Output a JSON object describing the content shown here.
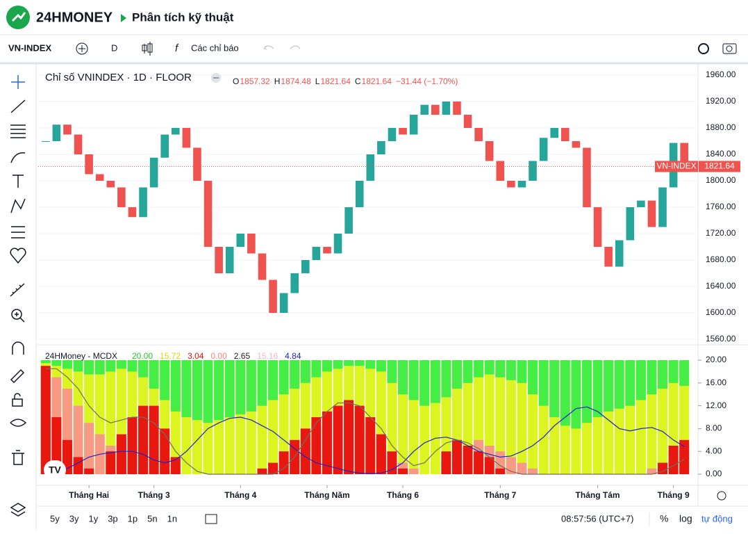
{
  "header": {
    "brand": "24HMONEY",
    "title": "Phân tích kỹ thuật"
  },
  "toolbar": {
    "symbol": "VN-INDEX",
    "interval": "D",
    "indicators": "Các chỉ báo"
  },
  "chart_data": [
    {
      "type": "candlestick",
      "title": "Chỉ số VNINDEX · 1D · FLOOR",
      "ohlc": [
        {
          "label": "O",
          "value": 1857.32
        },
        {
          "label": "H",
          "value": 1874.48
        },
        {
          "label": "L",
          "value": 1821.64
        },
        {
          "label": "C",
          "value": 1821.64
        }
      ],
      "change": "−31.44 (−1.70%)",
      "up_color": "#26a69a",
      "down_color": "#ef5350",
      "series": [
        {
          "name": "VN-INDEX",
          "values": [
            1860,
            1885,
            1870,
            1840,
            1810,
            1800,
            1790,
            1760,
            1745,
            1790,
            1835,
            1870,
            1880,
            1850,
            1800,
            1700,
            1660,
            1700,
            1720,
            1690,
            1650,
            1600,
            1630,
            1660,
            1680,
            1700,
            1690,
            1720,
            1760,
            1800,
            1840,
            1860,
            1880,
            1870,
            1900,
            1915,
            1900,
            1920,
            1900,
            1880,
            1860,
            1830,
            1800,
            1790,
            1800,
            1830,
            1865,
            1880,
            1860,
            1850,
            1760,
            1700,
            1670,
            1710,
            1760,
            1770,
            1730,
            1790,
            1857.32,
            1821.64
          ]
        }
      ],
      "ylim": [
        1560,
        1960
      ],
      "yticks": [
        {
          "value": 1560,
          "label": "1560.00"
        },
        {
          "value": 1600,
          "label": "1600.00"
        },
        {
          "value": 1640,
          "label": "1640.00"
        },
        {
          "value": 1680,
          "label": "1680.00"
        },
        {
          "value": 1720,
          "label": "1720.00"
        },
        {
          "value": 1760,
          "label": "1760.00"
        },
        {
          "value": 1800,
          "label": "1800.00"
        },
        {
          "value": 1840,
          "label": "1840.00"
        },
        {
          "value": 1880,
          "label": "1880.00"
        },
        {
          "value": 1920,
          "label": "1920.00"
        },
        {
          "value": 1960,
          "label": "1960.00"
        }
      ]
    },
    {
      "type": "mcdx",
      "title": "24HMoney - MCDX",
      "legend_values": [
        {
          "label": "20.00",
          "color": "#22cc22"
        },
        {
          "label": "15.72",
          "color": "#d8d800"
        },
        {
          "label": "3.04",
          "color": "#e01010"
        },
        {
          "label": "0.00",
          "color": "#f08878"
        },
        {
          "label": "2.65",
          "color": "#222222"
        },
        {
          "label": "15.16",
          "color": "#f4b8c0"
        },
        {
          "label": "4.84",
          "color": "#2020c0"
        }
      ],
      "fill_color": "#dcf520",
      "series": [
        {
          "style": "top-bar",
          "color": "#44ee44",
          "values": [
            19.5,
            19,
            18.5,
            18,
            17.5,
            17.5,
            18,
            18.5,
            18,
            17,
            15,
            13,
            11,
            10,
            9.5,
            9,
            9.5,
            10,
            10.5,
            11,
            12,
            13,
            14,
            15,
            16,
            17,
            18,
            18.5,
            19,
            19,
            18.5,
            18,
            16,
            14,
            13,
            12,
            12.5,
            13.5,
            15,
            16,
            17,
            17.5,
            17,
            16.5,
            16,
            14,
            12,
            10,
            8.5,
            8,
            9,
            10,
            11,
            11.5,
            12,
            13,
            14,
            15,
            16,
            15.5
          ]
        },
        {
          "style": "bar",
          "color": "#f79a84",
          "values": [
            18,
            17,
            15,
            12,
            9,
            7,
            5,
            6,
            8,
            7,
            5,
            3,
            1,
            0,
            0,
            0,
            0,
            0,
            0,
            0,
            0,
            1,
            3,
            5,
            7,
            9,
            11,
            12,
            11,
            9,
            7,
            5,
            3,
            2,
            1,
            0,
            0,
            2,
            4,
            5,
            6,
            5,
            4,
            3,
            2,
            1,
            0,
            0,
            0,
            0,
            0,
            0,
            0,
            0,
            0,
            0,
            1,
            2,
            3,
            4
          ]
        },
        {
          "style": "bar",
          "color": "#e8170f",
          "values": [
            19,
            10,
            6,
            3,
            1,
            0,
            4,
            7,
            10,
            12,
            12,
            8,
            3,
            0,
            0,
            0,
            0,
            0,
            0,
            0,
            1,
            2,
            4,
            6,
            8,
            10,
            11,
            12,
            13,
            12,
            10,
            7,
            4,
            1,
            0,
            0,
            0,
            4,
            6,
            5,
            4,
            3,
            1,
            0,
            0,
            0,
            0,
            0,
            0,
            0,
            0,
            0,
            0,
            0,
            0,
            0,
            0,
            2,
            5,
            6
          ]
        },
        {
          "style": "line",
          "color": "#1f22c8",
          "values": [
            0.2,
            0.5,
            1,
            2,
            3,
            3.5,
            3.8,
            4,
            4,
            3.5,
            2.5,
            2,
            2.5,
            4,
            6,
            8,
            9,
            9.8,
            10,
            9.5,
            8.5,
            7.5,
            6,
            4.5,
            3,
            2,
            1.5,
            1,
            0.5,
            0.2,
            0.1,
            0.2,
            0.8,
            2,
            4,
            5.5,
            6.3,
            6.5,
            6,
            5,
            4,
            3.5,
            3,
            3.2,
            4,
            5,
            6.5,
            8.5,
            10,
            11.5,
            11.8,
            11,
            9.5,
            8,
            7.6,
            8,
            8.2,
            7.5,
            6,
            4.84
          ]
        },
        {
          "style": "line",
          "color": "#707060",
          "values": [
            18.5,
            18.5,
            17,
            15,
            12,
            10,
            9,
            9.5,
            10,
            10,
            9,
            7,
            4,
            2,
            0.5,
            0,
            0,
            0,
            0,
            0,
            0,
            0,
            1,
            3,
            6,
            9,
            11,
            12.5,
            12.5,
            12,
            10,
            8,
            5,
            3,
            1.5,
            2,
            4,
            5.5,
            6,
            5.5,
            4.5,
            3,
            1.5,
            0.5,
            0,
            0,
            0,
            0,
            0,
            0,
            0,
            0,
            0,
            0,
            0,
            0,
            0,
            0.5,
            1.5,
            2.65
          ]
        }
      ],
      "ylim": [
        0,
        20
      ],
      "yticks": [
        {
          "value": 0,
          "label": "0.00"
        },
        {
          "value": 4,
          "label": "4.00"
        },
        {
          "value": 8,
          "label": "8.00"
        },
        {
          "value": 12,
          "label": "12.00"
        },
        {
          "value": 16,
          "label": "16.00"
        },
        {
          "value": 20,
          "label": "20.00"
        }
      ],
      "xticks": [
        {
          "value": 4,
          "label": "Tháng Hai"
        },
        {
          "value": 10,
          "label": "Tháng 3"
        },
        {
          "value": 18,
          "label": "Tháng 4"
        },
        {
          "value": 26,
          "label": "Tháng Năm"
        },
        {
          "value": 33,
          "label": "Tháng 6"
        },
        {
          "value": 42,
          "label": "Tháng 7"
        },
        {
          "value": 51,
          "label": "Tháng Tám"
        },
        {
          "value": 58,
          "label": "Tháng 9"
        }
      ]
    }
  ],
  "footer": {
    "ranges": [
      "5y",
      "3y",
      "1y",
      "3p",
      "1p",
      "5n",
      "1n"
    ],
    "time": "08:57:56 (UTC+7)",
    "percent": "%",
    "log": "log",
    "auto": "tự động"
  }
}
